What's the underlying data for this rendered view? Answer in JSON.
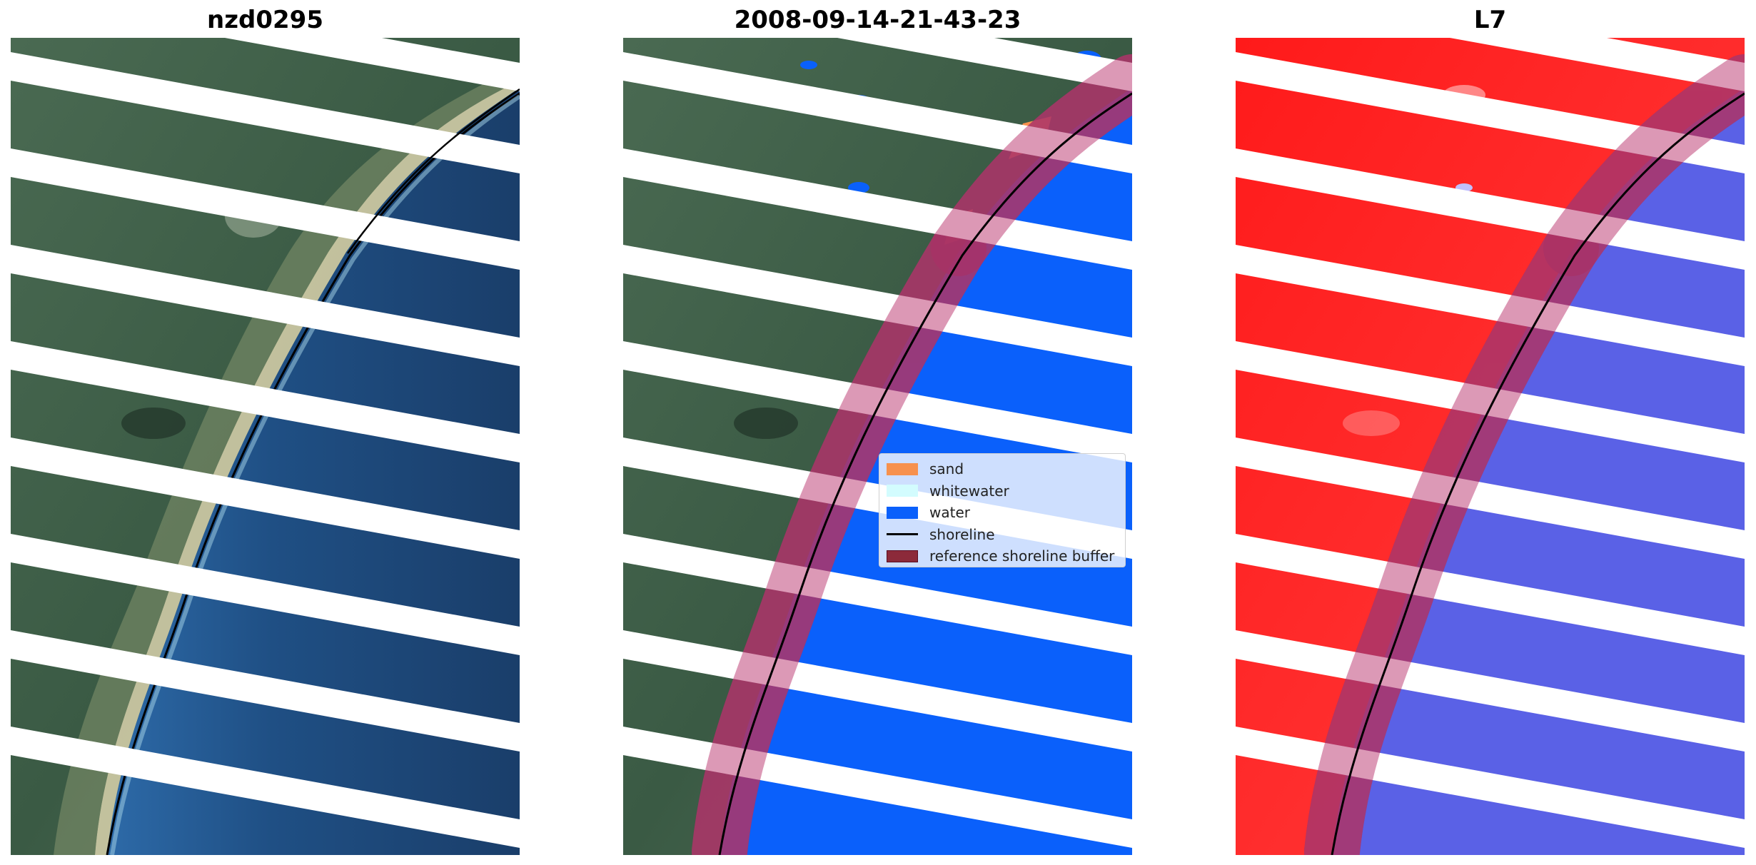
{
  "panels": [
    {
      "title": "nzd0295",
      "kind": "rgb"
    },
    {
      "title": "2008-09-14-21-43-23",
      "kind": "classified"
    },
    {
      "title": "L7",
      "kind": "index"
    }
  ],
  "legend": {
    "items": [
      {
        "label": "sand",
        "type": "patch",
        "color": "#f7914d"
      },
      {
        "label": "whitewater",
        "type": "patch",
        "color": "#d3fcfe"
      },
      {
        "label": "water",
        "type": "patch",
        "color": "#0a60fb"
      },
      {
        "label": "shoreline",
        "type": "line",
        "color": "#000000"
      },
      {
        "label": "reference shoreline buffer",
        "type": "patch",
        "color": "#8c2a3a"
      }
    ]
  },
  "colors": {
    "land_rgb": "#3f5e48",
    "water_rgb": "#1f4a79",
    "beach": "#d8cfa8",
    "classified_water": "#0a60fb",
    "index_land": "#ff2222",
    "index_water": "#5a61e6",
    "buffer": "#8a1a4e",
    "scanline_gap": "#ffffff"
  }
}
